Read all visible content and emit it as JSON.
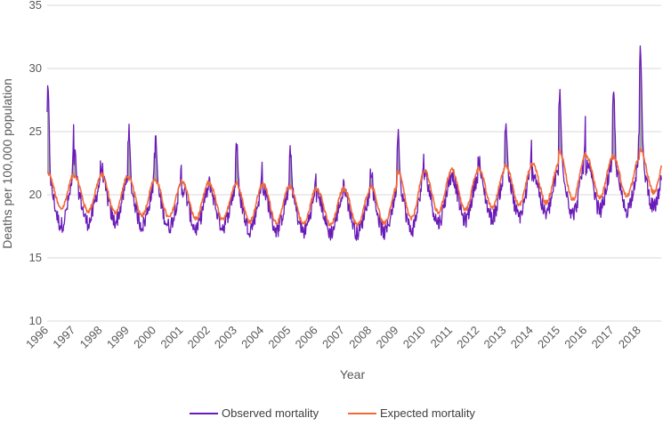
{
  "chart_data": {
    "type": "line",
    "xlabel": "Year",
    "ylabel": "Deaths per 100,000 population",
    "ylim": [
      10,
      35
    ],
    "y_ticks": [
      10,
      15,
      20,
      25,
      30,
      35
    ],
    "x_ticks": [
      "1996",
      "1997",
      "1998",
      "1999",
      "2000",
      "2001",
      "2002",
      "2003",
      "2004",
      "2005",
      "2006",
      "2007",
      "2008",
      "2009",
      "2010",
      "2011",
      "2012",
      "2013",
      "2014",
      "2015",
      "2016",
      "2017",
      "2018"
    ],
    "grid": "horizontal",
    "legend_position": "bottom",
    "colors": {
      "observed": "#6a1bb8",
      "expected": "#f26b38",
      "excess_fill": "#a6a6a6",
      "grid": "#d9d9d9"
    },
    "series": [
      {
        "name": "Observed mortality",
        "peaks": [
          28.8,
          23.7,
          22.7,
          25.6,
          24.8,
          21.0,
          21.4,
          24.6,
          21.1,
          24.1,
          20.5,
          21.3,
          22.6,
          25.8,
          22.2,
          22.4,
          23.4,
          26.3,
          22.3,
          28.7,
          22.8,
          28.6,
          32.3
        ],
        "troughs": [
          17.6,
          17.8,
          17.9,
          17.6,
          17.5,
          17.3,
          17.5,
          17.3,
          17.2,
          17.1,
          17.0,
          17.0,
          17.0,
          17.2,
          17.8,
          18.0,
          18.2,
          18.3,
          18.5,
          18.5,
          18.8,
          18.8,
          19.0
        ]
      },
      {
        "name": "Expected mortality",
        "peaks": [
          21.7,
          21.5,
          21.6,
          21.3,
          21.1,
          21.0,
          20.9,
          20.9,
          20.8,
          20.6,
          20.5,
          20.5,
          20.7,
          21.8,
          21.9,
          22.0,
          22.1,
          22.4,
          22.5,
          23.4,
          23.1,
          23.0,
          23.5
        ],
        "troughs": [
          18.9,
          18.7,
          18.6,
          18.4,
          18.2,
          18.1,
          18.0,
          17.9,
          17.8,
          17.7,
          17.6,
          17.6,
          17.7,
          18.1,
          18.6,
          18.8,
          19.0,
          19.2,
          19.4,
          19.6,
          19.8,
          19.9,
          20.2
        ]
      }
    ],
    "x_end": 2018.8
  }
}
